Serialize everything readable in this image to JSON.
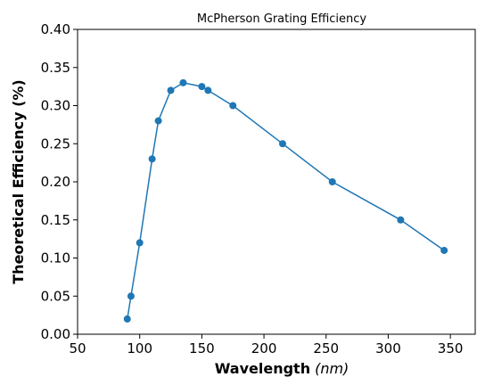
{
  "chart_data": {
    "type": "line",
    "title": "McPherson Grating Efficiency",
    "xlabel": "Wavelength",
    "xlabel_unit": "(nm)",
    "ylabel": "Theoretical Efficiency (%)",
    "xlim": [
      50,
      370
    ],
    "ylim": [
      0.0,
      0.4
    ],
    "xticks": [
      50,
      100,
      150,
      200,
      250,
      300,
      350
    ],
    "yticks": [
      0.0,
      0.05,
      0.1,
      0.15,
      0.2,
      0.25,
      0.3,
      0.35,
      0.4
    ],
    "xtick_labels": [
      "50",
      "100",
      "150",
      "200",
      "250",
      "300",
      "350"
    ],
    "ytick_labels": [
      "0.00",
      "0.05",
      "0.10",
      "0.15",
      "0.20",
      "0.25",
      "0.30",
      "0.35",
      "0.40"
    ],
    "grid": false,
    "series": [
      {
        "color": "#1f77b4",
        "x": [
          90,
          93,
          100,
          110,
          115,
          125,
          135,
          150,
          155,
          175,
          215,
          255,
          310,
          345
        ],
        "y": [
          0.02,
          0.05,
          0.12,
          0.23,
          0.28,
          0.32,
          0.33,
          0.325,
          0.32,
          0.3,
          0.25,
          0.2,
          0.15,
          0.11
        ]
      }
    ]
  }
}
